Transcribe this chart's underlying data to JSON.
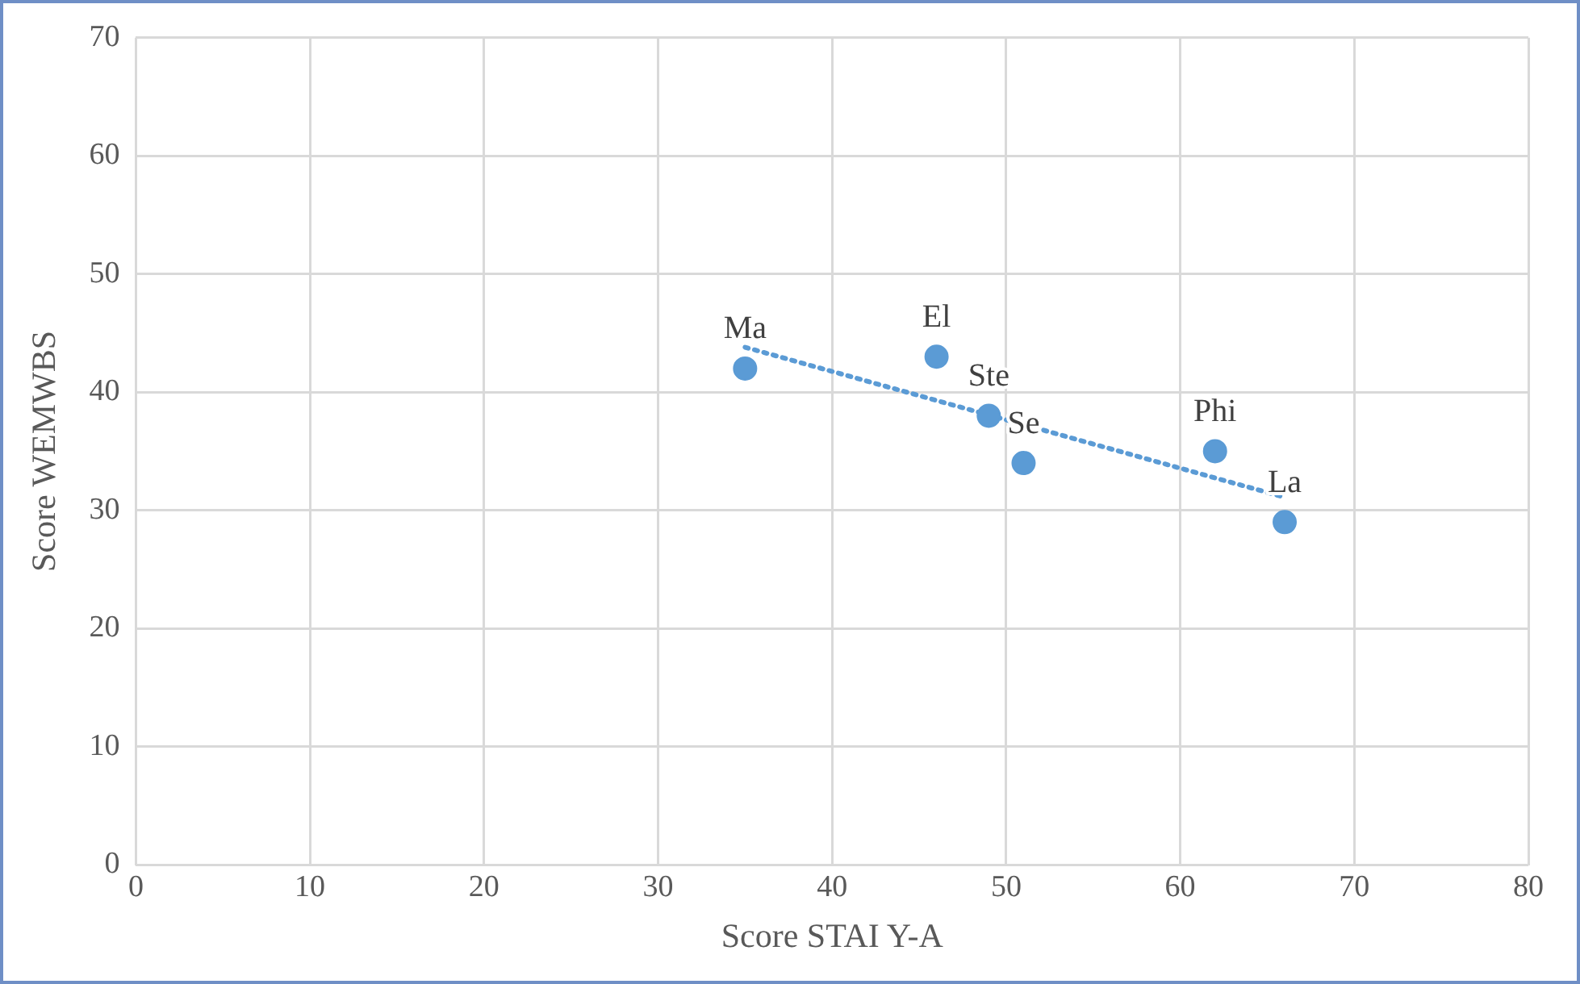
{
  "chart_data": {
    "type": "scatter",
    "xlabel": "Score STAI Y-A",
    "ylabel": "Score WEMWBS",
    "xlim": [
      0,
      80
    ],
    "xticks": [
      0,
      10,
      20,
      30,
      40,
      50,
      60,
      70,
      80
    ],
    "ylim": [
      0,
      70
    ],
    "yticks": [
      0,
      10,
      20,
      30,
      40,
      50,
      60,
      70
    ],
    "grid": true,
    "legend": false,
    "series": [
      {
        "color": "#5b9bd5",
        "marker": "circle",
        "x": [
          35,
          46,
          49,
          51,
          62,
          66
        ],
        "values": [
          42,
          43,
          38,
          34,
          35,
          29
        ]
      },
      {
        "type": "line",
        "color": "#5b9bd5",
        "marker": "none",
        "line_style": "dotted",
        "x": [
          35,
          66
        ],
        "values": [
          43.8,
          31.1
        ]
      }
    ],
    "annotations": [
      {
        "text": "Ma",
        "x": 35,
        "y": 42
      },
      {
        "text": "El",
        "x": 46,
        "y": 43
      },
      {
        "text": "Ste",
        "x": 49,
        "y": 38
      },
      {
        "text": "Se",
        "x": 51,
        "y": 34
      },
      {
        "text": "Phi",
        "x": 62,
        "y": 35
      },
      {
        "text": "La",
        "x": 66,
        "y": 29
      }
    ]
  }
}
